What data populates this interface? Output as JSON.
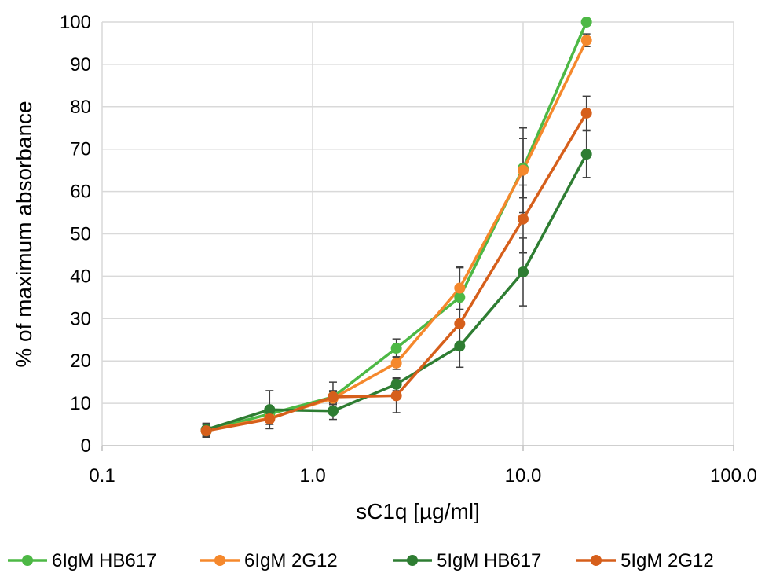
{
  "chart_data": {
    "type": "line",
    "xlabel": "sC1q [µg/ml]",
    "ylabel": "% of maximum absorbance",
    "x_scale": "log",
    "xlim": [
      0.1,
      100
    ],
    "ylim": [
      0,
      100
    ],
    "x_ticks": [
      "0.1",
      "1.0",
      "10.0",
      "100.0"
    ],
    "y_ticks": [
      "0",
      "10",
      "20",
      "30",
      "40",
      "50",
      "60",
      "70",
      "80",
      "90",
      "100"
    ],
    "grid": true,
    "legend_position": "bottom",
    "x": [
      0.3125,
      0.625,
      1.25,
      2.5,
      5,
      10,
      20
    ],
    "series": [
      {
        "name": "6IgM HB617",
        "color": "#4db845",
        "values": [
          3.5,
          7.5,
          11.5,
          23.0,
          35.0,
          65.5,
          100.0
        ],
        "errors": [
          1.5,
          1.5,
          1.5,
          2.2,
          7.0,
          7.0,
          0
        ]
      },
      {
        "name": "6IgM 2G12",
        "color": "#f5882c",
        "values": [
          3.6,
          6.5,
          11.2,
          19.5,
          37.2,
          65.0,
          95.7
        ],
        "errors": [
          1.5,
          1.5,
          1.5,
          1.5,
          5.0,
          10.0,
          1.5
        ]
      },
      {
        "name": "5IgM HB617",
        "color": "#2e7d32",
        "values": [
          3.8,
          8.5,
          8.2,
          14.5,
          23.5,
          41.0,
          68.8
        ],
        "errors": [
          1.5,
          4.5,
          2.0,
          1.5,
          5.0,
          8.0,
          5.5
        ]
      },
      {
        "name": "5IgM 2G12",
        "color": "#d65f1b",
        "values": [
          3.5,
          6.3,
          11.5,
          11.8,
          28.8,
          53.5,
          78.5
        ],
        "errors": [
          1.5,
          2.2,
          3.5,
          4.0,
          5.5,
          8.0,
          4.0
        ]
      }
    ]
  }
}
